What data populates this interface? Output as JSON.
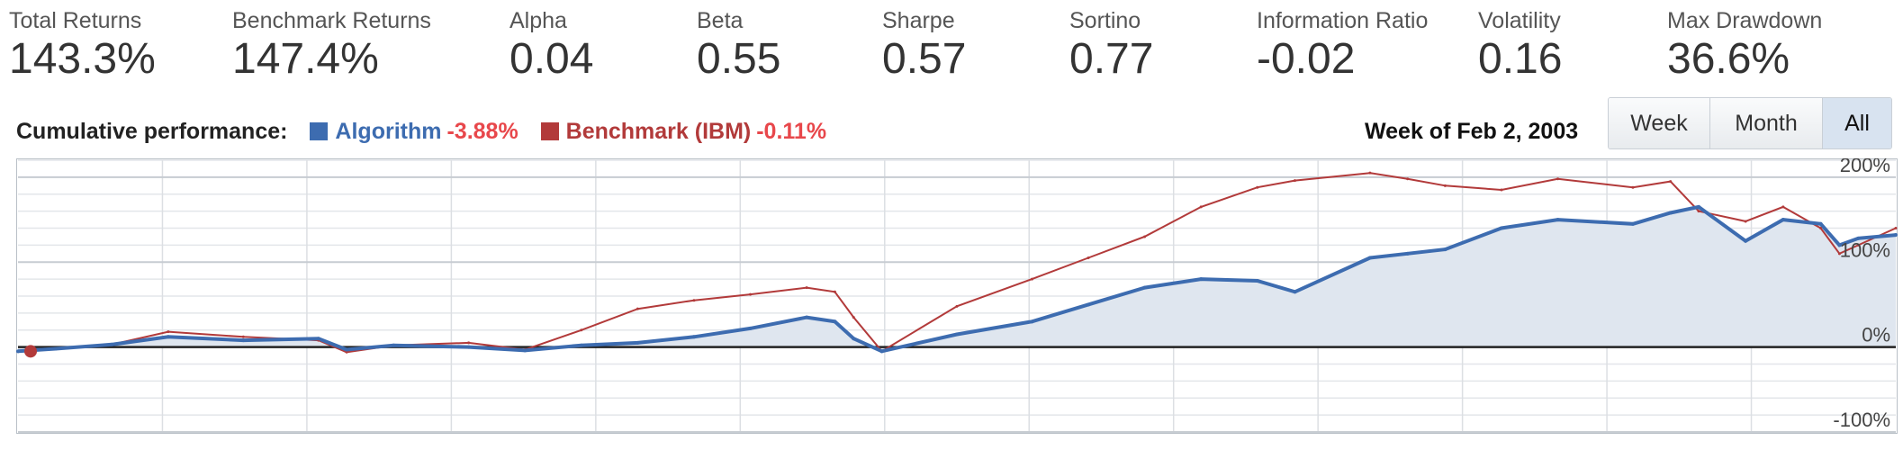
{
  "stats": [
    {
      "label": "Total Returns",
      "value": "143.3%"
    },
    {
      "label": "Benchmark Returns",
      "value": "147.4%"
    },
    {
      "label": "Alpha",
      "value": "0.04"
    },
    {
      "label": "Beta",
      "value": "0.55"
    },
    {
      "label": "Sharpe",
      "value": "0.57"
    },
    {
      "label": "Sortino",
      "value": "0.77"
    },
    {
      "label": "Information Ratio",
      "value": "-0.02"
    },
    {
      "label": "Volatility",
      "value": "0.16"
    },
    {
      "label": "Max Drawdown",
      "value": "36.6%"
    }
  ],
  "performance": {
    "label": "Cumulative performance:",
    "legend": [
      {
        "name": "Algorithm",
        "value": "-3.88%",
        "color": "#3d6cb0"
      },
      {
        "name": "Benchmark (IBM)",
        "value": "-0.11%",
        "color": "#b23a3a"
      }
    ],
    "week_of": "Week of Feb 2, 2003"
  },
  "range_buttons": {
    "week": "Week",
    "month": "Month",
    "all": "All",
    "active": "All"
  },
  "chart_data": {
    "type": "line",
    "title": "",
    "xlabel": "",
    "ylabel": "",
    "ylim": [
      -100,
      220
    ],
    "y_ticks": [
      {
        "value": 200,
        "label": "200%"
      },
      {
        "value": 100,
        "label": "100%"
      },
      {
        "value": 0,
        "label": "0%"
      },
      {
        "value": -100,
        "label": "-100%"
      }
    ],
    "grid": true,
    "x": [
      0,
      0.02,
      0.05,
      0.08,
      0.12,
      0.16,
      0.175,
      0.2,
      0.24,
      0.27,
      0.3,
      0.33,
      0.36,
      0.39,
      0.42,
      0.435,
      0.445,
      0.46,
      0.5,
      0.54,
      0.57,
      0.6,
      0.63,
      0.66,
      0.68,
      0.72,
      0.74,
      0.76,
      0.79,
      0.82,
      0.86,
      0.88,
      0.895,
      0.92,
      0.94,
      0.96,
      0.97,
      0.98,
      1.0
    ],
    "series": [
      {
        "name": "Algorithm",
        "color": "#3d6cb0",
        "values": [
          -5,
          -2,
          3,
          12,
          8,
          10,
          -3,
          2,
          0,
          -4,
          2,
          5,
          12,
          22,
          35,
          30,
          10,
          -5,
          15,
          30,
          50,
          70,
          80,
          78,
          65,
          105,
          110,
          115,
          140,
          150,
          145,
          158,
          165,
          125,
          150,
          145,
          120,
          128,
          132
        ]
      },
      {
        "name": "Benchmark (IBM)",
        "color": "#b23a3a",
        "values": [
          -5,
          -2,
          3,
          18,
          12,
          8,
          -6,
          2,
          5,
          -3,
          20,
          45,
          55,
          62,
          70,
          65,
          35,
          -5,
          48,
          80,
          105,
          130,
          165,
          188,
          196,
          205,
          198,
          190,
          185,
          198,
          188,
          195,
          160,
          148,
          165,
          140,
          110,
          120,
          140
        ]
      }
    ]
  }
}
